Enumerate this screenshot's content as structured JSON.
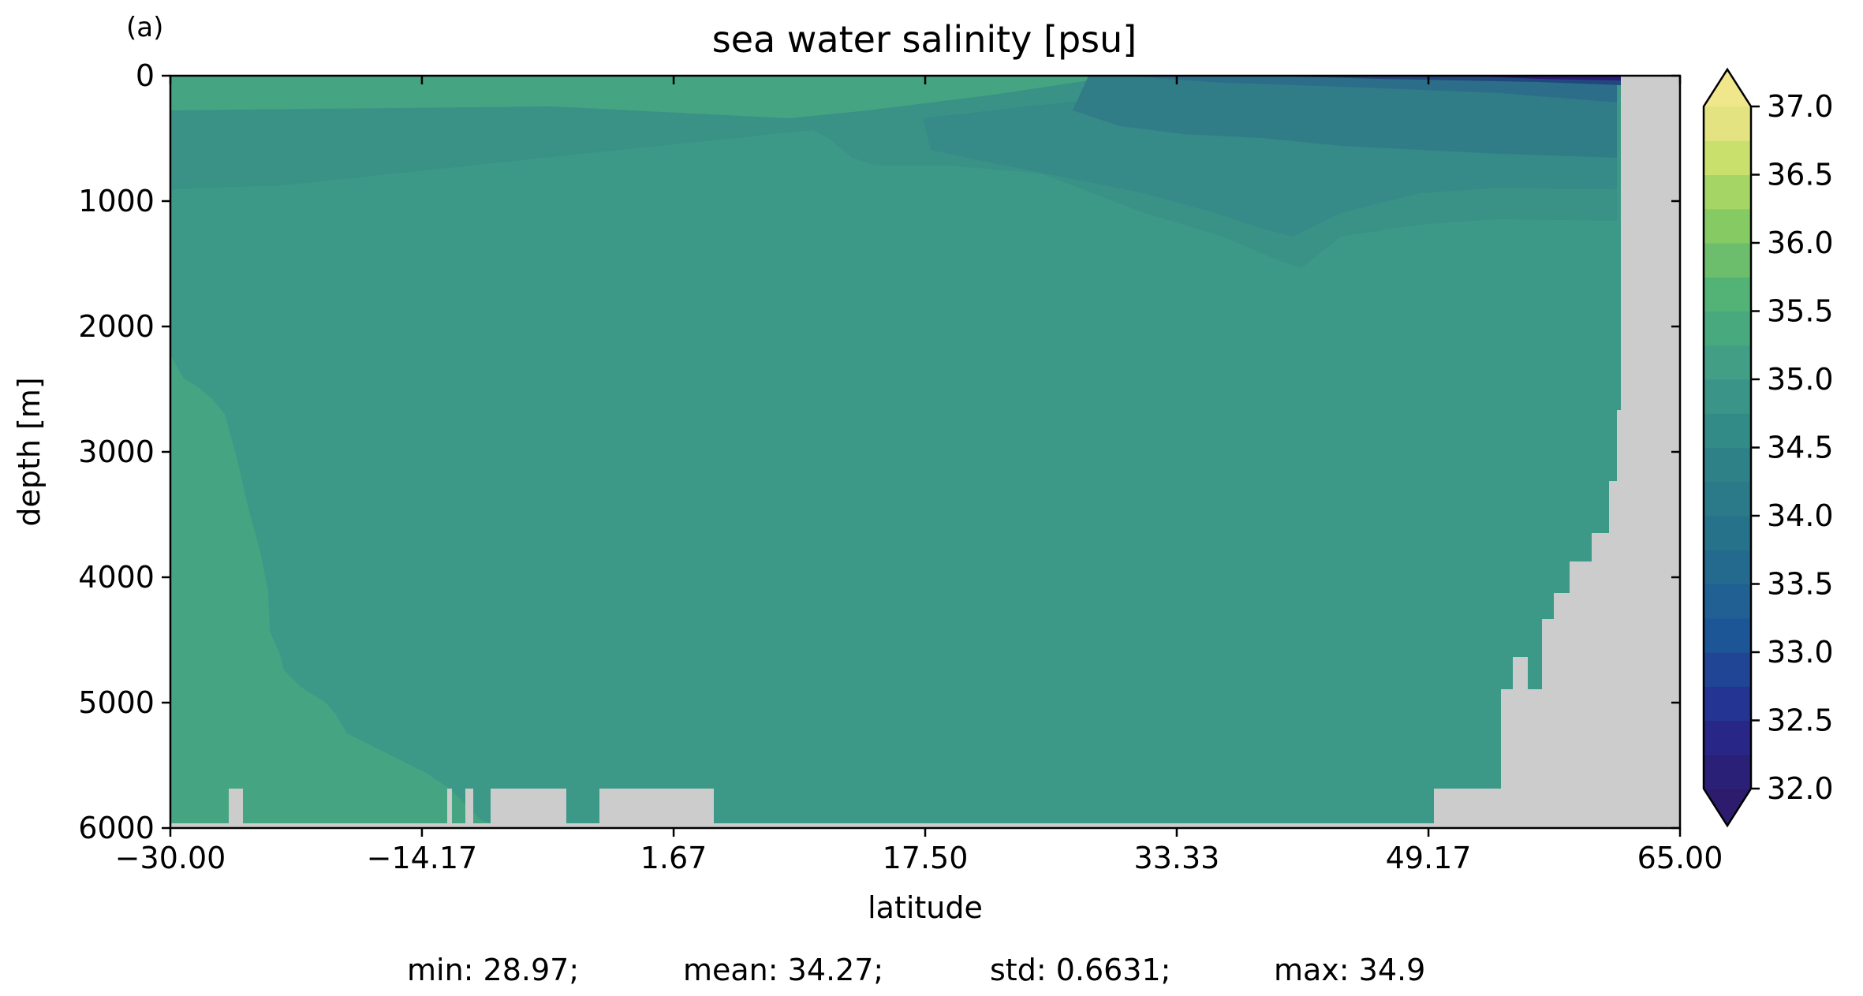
{
  "panel_label": "(a)",
  "chart_data": {
    "type": "heatmap",
    "title": "sea water salinity [psu]",
    "xlabel": "latitude",
    "ylabel": "depth [m]",
    "xlim": [
      -30.0,
      65.0
    ],
    "ylim": [
      6000,
      0
    ],
    "x_ticks": [
      "−30.00",
      "−14.17",
      "1.67",
      "17.50",
      "33.33",
      "49.17",
      "65.00"
    ],
    "y_ticks": [
      "0",
      "1000",
      "2000",
      "3000",
      "4000",
      "5000",
      "6000"
    ],
    "colorbar": {
      "min": 32.0,
      "max": 37.0,
      "step": 0.25,
      "extend": "both",
      "ticks": [
        "32.0",
        "32.5",
        "33.0",
        "33.5",
        "34.0",
        "34.5",
        "35.0",
        "35.5",
        "36.0",
        "36.5",
        "37.0"
      ]
    },
    "stats": {
      "min": "min: 28.97;",
      "mean": "mean: 34.27;",
      "std": "std: 0.6631;",
      "max": "max: 34.9"
    }
  }
}
